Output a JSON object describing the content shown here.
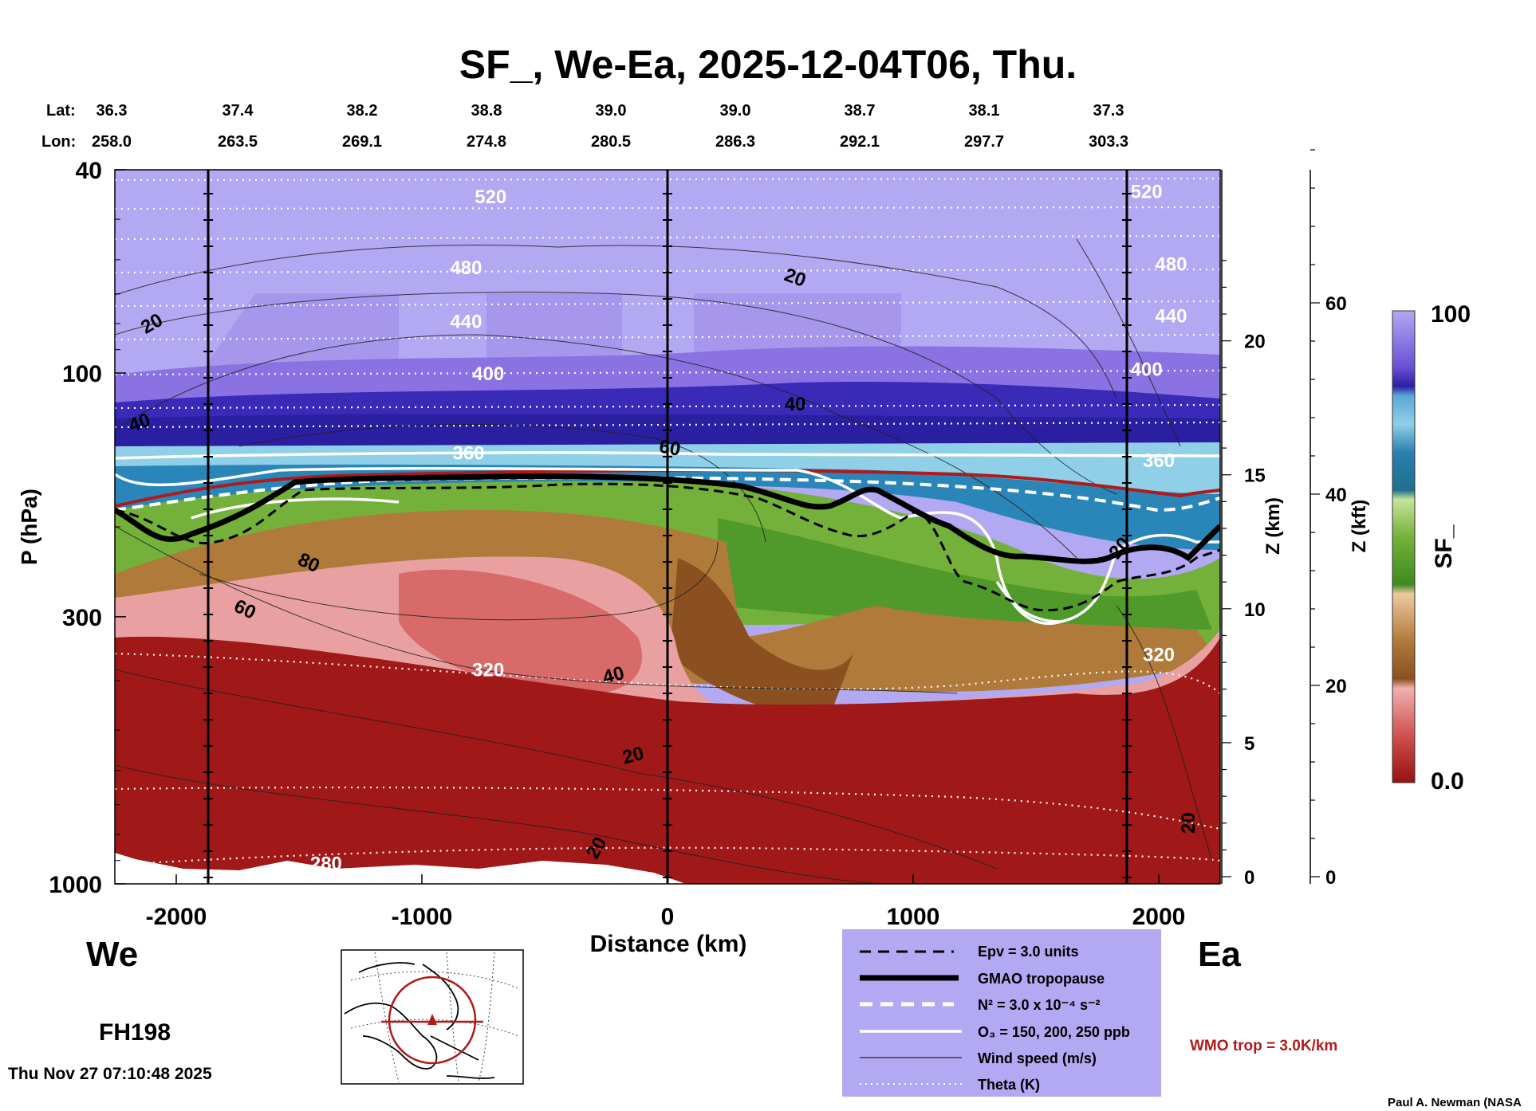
{
  "colors": {
    "band_top": "#b3a8f2",
    "band_purple": "#6f52d8",
    "band_blue_dark": "#2a1fa0",
    "band_blue": "#2a86b8",
    "band_lightblue": "#8fd0e8",
    "band_green": "#74b13a",
    "band_brown": "#a86a2c",
    "band_pink": "#e8a0a0",
    "band_red": "#a01818",
    "legend_bg": "#b3a8f2",
    "wmo": "#b01a1a"
  },
  "chart_data": {
    "type": "contour-cross-section",
    "title": "SF_, We-Ea, 2025-12-04T06, Thu.",
    "xlabel": "Distance (km)",
    "ylabel": "P (hPa)",
    "y2label": "Z (km)",
    "y3label": "Z (kft)",
    "cbar_label": "SF_",
    "xlim": [
      -2250,
      2250
    ],
    "ylim": [
      1000,
      40
    ],
    "x_ticks": [
      -2000,
      -1000,
      0,
      1000,
      2000
    ],
    "p_ticks": [
      40,
      100,
      300,
      1000
    ],
    "z_km_ticks": [
      0,
      5,
      10,
      15,
      20
    ],
    "z_kft_ticks": [
      0,
      20,
      40,
      60
    ],
    "cbar_ticks": [
      "100",
      "0.0"
    ],
    "lat_label": "Lat:",
    "lon_label": "Lon:",
    "lat": [
      "36.3",
      "37.4",
      "38.2",
      "38.8",
      "39.0",
      "39.0",
      "38.7",
      "38.1",
      "37.3"
    ],
    "lon": [
      "258.0",
      "263.5",
      "269.1",
      "274.8",
      "280.5",
      "286.3",
      "292.1",
      "297.7",
      "303.3"
    ],
    "marker_lines_km": [
      -1870,
      0,
      1870
    ],
    "theta_labels": [
      {
        "text": "520",
        "x": -720,
        "p": 45
      },
      {
        "text": "520",
        "x": 1950,
        "p": 44
      },
      {
        "text": "480",
        "x": -820,
        "p": 62
      },
      {
        "text": "480",
        "x": 2050,
        "p": 61
      },
      {
        "text": "440",
        "x": -820,
        "p": 79
      },
      {
        "text": "440",
        "x": 2050,
        "p": 77
      },
      {
        "text": "400",
        "x": -730,
        "p": 100
      },
      {
        "text": "400",
        "x": 1950,
        "p": 98
      },
      {
        "text": "360",
        "x": -810,
        "p": 143
      },
      {
        "text": "360",
        "x": 2000,
        "p": 148
      },
      {
        "text": "320",
        "x": -730,
        "p": 380
      },
      {
        "text": "320",
        "x": 2000,
        "p": 355
      },
      {
        "text": "280",
        "x": -1390,
        "p": 910
      }
    ],
    "wind_labels": [
      {
        "text": "20",
        "x": -2100,
        "p": 80,
        "rot": -30
      },
      {
        "text": "20",
        "x": 520,
        "p": 65,
        "rot": 20
      },
      {
        "text": "40",
        "x": -2150,
        "p": 125,
        "rot": -20
      },
      {
        "text": "40",
        "x": 520,
        "p": 115,
        "rot": 0
      },
      {
        "text": "60",
        "x": 10,
        "p": 140,
        "rot": 10
      },
      {
        "text": "80",
        "x": -1460,
        "p": 235,
        "rot": 25
      },
      {
        "text": "60",
        "x": -1720,
        "p": 290,
        "rot": 25
      },
      {
        "text": "40",
        "x": -220,
        "p": 390,
        "rot": -15
      },
      {
        "text": "20",
        "x": -140,
        "p": 560,
        "rot": -15
      },
      {
        "text": "20",
        "x": -290,
        "p": 850,
        "rot": -60
      },
      {
        "text": "20",
        "x": 2120,
        "p": 760,
        "rot": -90
      },
      {
        "text": "20",
        "x": 1840,
        "p": 220,
        "rot": -50
      }
    ]
  },
  "labels": {
    "west": "We",
    "east": "Ea",
    "forecast_hour": "FH198",
    "timestamp": "Thu Nov 27 07:10:48 2025",
    "credit": "Paul A. Newman (NASA",
    "wmo": "WMO trop = 3.0K/km"
  },
  "legend": {
    "items": [
      {
        "text": "Epv = 3.0 units"
      },
      {
        "text": "GMAO tropopause"
      },
      {
        "text": "N² = 3.0 x 10⁻⁴ s⁻²"
      },
      {
        "text": "O₃ = 150, 200, 250 ppb"
      },
      {
        "text": "Wind speed (m/s)"
      },
      {
        "text": "Theta (K)"
      }
    ]
  }
}
